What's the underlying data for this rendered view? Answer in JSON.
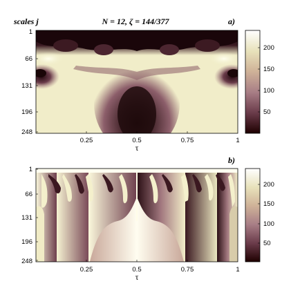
{
  "figure": {
    "title": "N = 12, ζ = 144/377",
    "y_axis_label": "scales j"
  },
  "chart_data": [
    {
      "type": "heatmap",
      "panel_label": "a)",
      "xlabel": "τ",
      "ylabel": "scales j",
      "x_ticks": [
        "0.25",
        "0.5",
        "0.75",
        "1"
      ],
      "x_tick_values": [
        0.25,
        0.5,
        0.75,
        1
      ],
      "y_ticks": [
        "1",
        "66",
        "131",
        "196",
        "248"
      ],
      "y_tick_values": [
        1,
        66,
        131,
        196,
        248
      ],
      "xlim": [
        0,
        1
      ],
      "ylim": [
        1,
        248
      ],
      "colorbar_ticks": [
        "200",
        "150",
        "100",
        "50"
      ],
      "colorbar_tick_values": [
        200,
        150,
        100,
        50
      ],
      "colorbar_range": [
        0,
        240
      ],
      "colormap": "pink"
    },
    {
      "type": "heatmap",
      "panel_label": "b)",
      "xlabel": "τ",
      "ylabel": "",
      "x_ticks": [
        "0.25",
        "0.5",
        "0.75",
        "1"
      ],
      "x_tick_values": [
        0.25,
        0.5,
        0.75,
        1
      ],
      "y_ticks": [
        "1",
        "66",
        "131",
        "196",
        "248"
      ],
      "y_tick_values": [
        1,
        66,
        131,
        196,
        248
      ],
      "xlim": [
        0,
        1
      ],
      "ylim": [
        1,
        248
      ],
      "colorbar_ticks": [
        "200",
        "150",
        "100",
        "50"
      ],
      "colorbar_tick_values": [
        200,
        150,
        100,
        50
      ],
      "colorbar_range": [
        0,
        240
      ],
      "colormap": "pink"
    }
  ]
}
